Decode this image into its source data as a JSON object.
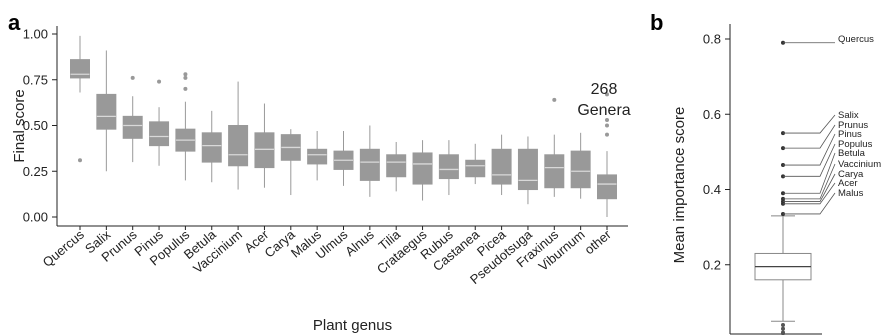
{
  "panels": {
    "a": "a",
    "b": "b"
  },
  "annotation": {
    "line1": "268",
    "line2": "Genera"
  },
  "chart_data": [
    {
      "type": "box",
      "panel": "a",
      "xlabel": "Plant genus",
      "ylabel": "Final score",
      "ylim": [
        0,
        1
      ],
      "yticks": [
        "0.00",
        "0.25",
        "0.50",
        "0.75",
        "1.00"
      ],
      "ytick_values": [
        0,
        0.25,
        0.5,
        0.75,
        1.0
      ],
      "color": "#999999",
      "median_color": "#d9d9d9",
      "categories": [
        "Quercus",
        "Salix",
        "Prunus",
        "Pinus",
        "Populus",
        "Betula",
        "Vaccinium",
        "Acer",
        "Carya",
        "Malus",
        "Ulmus",
        "Alnus",
        "Tilia",
        "Crataegus",
        "Rubus",
        "Castanea",
        "Picea",
        "Pseudotsuga",
        "Fraxinus",
        "Viburnum",
        "other"
      ],
      "boxes": [
        {
          "wlo": 0.68,
          "q1": 0.76,
          "med": 0.78,
          "q3": 0.86,
          "whi": 0.99,
          "outliers": [
            0.31
          ]
        },
        {
          "wlo": 0.25,
          "q1": 0.48,
          "med": 0.55,
          "q3": 0.67,
          "whi": 0.91,
          "outliers": []
        },
        {
          "wlo": 0.3,
          "q1": 0.43,
          "med": 0.5,
          "q3": 0.55,
          "whi": 0.66,
          "outliers": [
            0.76
          ]
        },
        {
          "wlo": 0.28,
          "q1": 0.39,
          "med": 0.44,
          "q3": 0.52,
          "whi": 0.6,
          "outliers": [
            0.74
          ]
        },
        {
          "wlo": 0.2,
          "q1": 0.36,
          "med": 0.42,
          "q3": 0.48,
          "whi": 0.63,
          "outliers": [
            0.7,
            0.76,
            0.78
          ]
        },
        {
          "wlo": 0.19,
          "q1": 0.3,
          "med": 0.39,
          "q3": 0.46,
          "whi": 0.58,
          "outliers": []
        },
        {
          "wlo": 0.15,
          "q1": 0.28,
          "med": 0.34,
          "q3": 0.5,
          "whi": 0.74,
          "outliers": []
        },
        {
          "wlo": 0.16,
          "q1": 0.27,
          "med": 0.37,
          "q3": 0.46,
          "whi": 0.62,
          "outliers": []
        },
        {
          "wlo": 0.12,
          "q1": 0.31,
          "med": 0.38,
          "q3": 0.45,
          "whi": 0.48,
          "outliers": []
        },
        {
          "wlo": 0.2,
          "q1": 0.29,
          "med": 0.34,
          "q3": 0.37,
          "whi": 0.47,
          "outliers": []
        },
        {
          "wlo": 0.17,
          "q1": 0.26,
          "med": 0.31,
          "q3": 0.36,
          "whi": 0.47,
          "outliers": []
        },
        {
          "wlo": 0.11,
          "q1": 0.2,
          "med": 0.3,
          "q3": 0.37,
          "whi": 0.5,
          "outliers": []
        },
        {
          "wlo": 0.14,
          "q1": 0.22,
          "med": 0.3,
          "q3": 0.34,
          "whi": 0.41,
          "outliers": []
        },
        {
          "wlo": 0.09,
          "q1": 0.18,
          "med": 0.29,
          "q3": 0.35,
          "whi": 0.42,
          "outliers": []
        },
        {
          "wlo": 0.12,
          "q1": 0.21,
          "med": 0.26,
          "q3": 0.34,
          "whi": 0.42,
          "outliers": []
        },
        {
          "wlo": 0.18,
          "q1": 0.22,
          "med": 0.28,
          "q3": 0.31,
          "whi": 0.4,
          "outliers": []
        },
        {
          "wlo": 0.12,
          "q1": 0.18,
          "med": 0.23,
          "q3": 0.37,
          "whi": 0.45,
          "outliers": []
        },
        {
          "wlo": 0.07,
          "q1": 0.15,
          "med": 0.2,
          "q3": 0.37,
          "whi": 0.44,
          "outliers": []
        },
        {
          "wlo": 0.11,
          "q1": 0.16,
          "med": 0.27,
          "q3": 0.34,
          "whi": 0.45,
          "outliers": [
            0.64
          ]
        },
        {
          "wlo": 0.1,
          "q1": 0.16,
          "med": 0.25,
          "q3": 0.36,
          "whi": 0.46,
          "outliers": []
        },
        {
          "wlo": 0.0,
          "q1": 0.1,
          "med": 0.18,
          "q3": 0.23,
          "whi": 0.36,
          "outliers": [
            0.45,
            0.5,
            0.53,
            0.67
          ]
        }
      ]
    },
    {
      "type": "box",
      "panel": "b",
      "ylabel": "Mean importance score",
      "ylim": [
        0,
        0.8
      ],
      "yticks": [
        "0.0",
        "0.2",
        "0.4",
        "0.6",
        "0.8"
      ],
      "ytick_values": [
        0,
        0.2,
        0.4,
        0.6,
        0.8
      ],
      "box": {
        "wlo": 0.05,
        "q1": 0.16,
        "med": 0.195,
        "q3": 0.23,
        "whi": 0.33,
        "outliers": [
          0.01,
          0.02,
          0.03,
          0.04
        ]
      },
      "labeled_points": [
        {
          "name": "Quercus",
          "y": 0.79
        },
        {
          "name": "Salix",
          "y": 0.55
        },
        {
          "name": "Prunus",
          "y": 0.51
        },
        {
          "name": "Pinus",
          "y": 0.465
        },
        {
          "name": "Populus",
          "y": 0.435
        },
        {
          "name": "Betula",
          "y": 0.39
        },
        {
          "name": "Vaccinium",
          "y": 0.375
        },
        {
          "name": "Carya",
          "y": 0.368
        },
        {
          "name": "Acer",
          "y": 0.362
        },
        {
          "name": "Malus",
          "y": 0.335
        }
      ]
    }
  ]
}
